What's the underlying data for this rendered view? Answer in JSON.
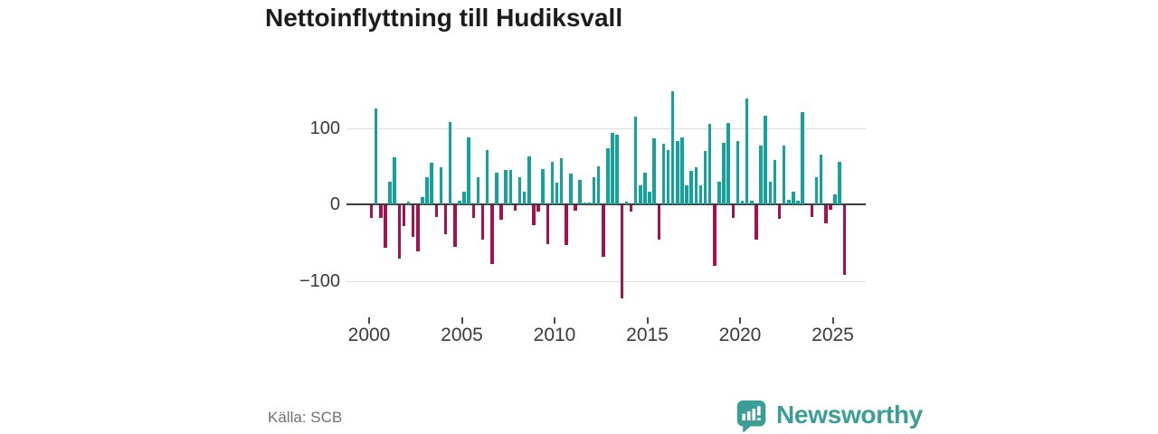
{
  "title": "Nettoinflyttning till Hudiksvall",
  "source": "Källa: SCB",
  "logo": {
    "text": "Newsworthy",
    "icon": "speech-bubble-bar-chart"
  },
  "colors": {
    "positive": "#14a29c",
    "negative": "#a21150",
    "gridline": "#dcdcdc",
    "zero_line": "#3d3d3d",
    "axis_text": "#3a3a3a",
    "title_text": "#1c1c1c",
    "source_text": "#6e7076",
    "brand_teal": "#3a9d96"
  },
  "chart_data": {
    "type": "bar",
    "title": "Nettoinflyttning till Hudiksvall",
    "frequency": "quarterly",
    "start_year": 2000,
    "start_quarter": 1,
    "values": [
      -17,
      125,
      -16,
      -56,
      30,
      61,
      -70,
      -27,
      3,
      -41,
      -60,
      9,
      35,
      55,
      -15,
      49,
      -38,
      108,
      -54,
      5,
      17,
      88,
      -16,
      36,
      -45,
      71,
      -77,
      42,
      -19,
      45,
      45,
      -7,
      36,
      16,
      63,
      -26,
      -8,
      46,
      -51,
      56,
      28,
      60,
      -52,
      40,
      -7,
      32,
      2,
      2,
      35,
      50,
      -67,
      73,
      93,
      91,
      -122,
      3,
      -8,
      115,
      25,
      42,
      17,
      86,
      -45,
      79,
      71,
      148,
      83,
      87,
      25,
      44,
      48,
      25,
      70,
      105,
      -79,
      29,
      80,
      106,
      -16,
      83,
      5,
      139,
      5,
      -45,
      77,
      116,
      30,
      58,
      -18,
      77,
      6,
      16,
      5,
      121,
      0,
      -15,
      36,
      65,
      -24,
      -6,
      13,
      56,
      -91
    ],
    "y_ticks": [
      {
        "value": 100,
        "label": "100"
      },
      {
        "value": 0,
        "label": "0"
      },
      {
        "value": -100,
        "label": "−100"
      }
    ],
    "x_ticks": [
      2000,
      2005,
      2010,
      2015,
      2020,
      2025
    ],
    "ylim": [
      -130,
      155
    ],
    "grid": true,
    "legend": false,
    "xlabel": "",
    "ylabel": ""
  }
}
